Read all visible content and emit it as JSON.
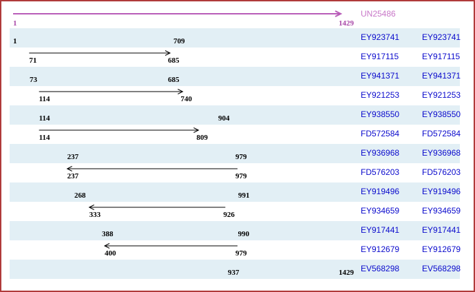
{
  "window": {
    "border_color": "#b03a3a",
    "background": "#ffffff",
    "stripe_color": "#e2eff5"
  },
  "colors": {
    "reference_arrow": "#b85cb8",
    "reference_name": "#c877c8",
    "reference_coords": "#a848a8",
    "accession_link": "#0909cc",
    "alignment_arrow": "#000000",
    "coord_text": "#000000"
  },
  "reference": {
    "name": "UN25486",
    "start": 1,
    "end": 1429,
    "strand": "+"
  },
  "alignments": [
    {
      "name": "EY923741",
      "start": 1,
      "end": 709,
      "strand": "+"
    },
    {
      "name": "EY917115",
      "start": 71,
      "end": 685,
      "strand": "+"
    },
    {
      "name": "EY941371",
      "start": 73,
      "end": 685,
      "strand": "+"
    },
    {
      "name": "EY921253",
      "start": 114,
      "end": 740,
      "strand": "+"
    },
    {
      "name": "EY938550",
      "start": 114,
      "end": 904,
      "strand": "+"
    },
    {
      "name": "FD572584",
      "start": 114,
      "end": 809,
      "strand": "+"
    },
    {
      "name": "EY936968",
      "start": 237,
      "end": 979,
      "strand": "-"
    },
    {
      "name": "FD576203",
      "start": 237,
      "end": 979,
      "strand": "-"
    },
    {
      "name": "EY919496",
      "start": 268,
      "end": 991,
      "strand": "-"
    },
    {
      "name": "EY934659",
      "start": 333,
      "end": 926,
      "strand": "-"
    },
    {
      "name": "EY917441",
      "start": 388,
      "end": 990,
      "strand": "-"
    },
    {
      "name": "EY912679",
      "start": 400,
      "end": 979,
      "strand": "-"
    },
    {
      "name": "EV568298",
      "start": 937,
      "end": 1429,
      "strand": "-"
    }
  ]
}
